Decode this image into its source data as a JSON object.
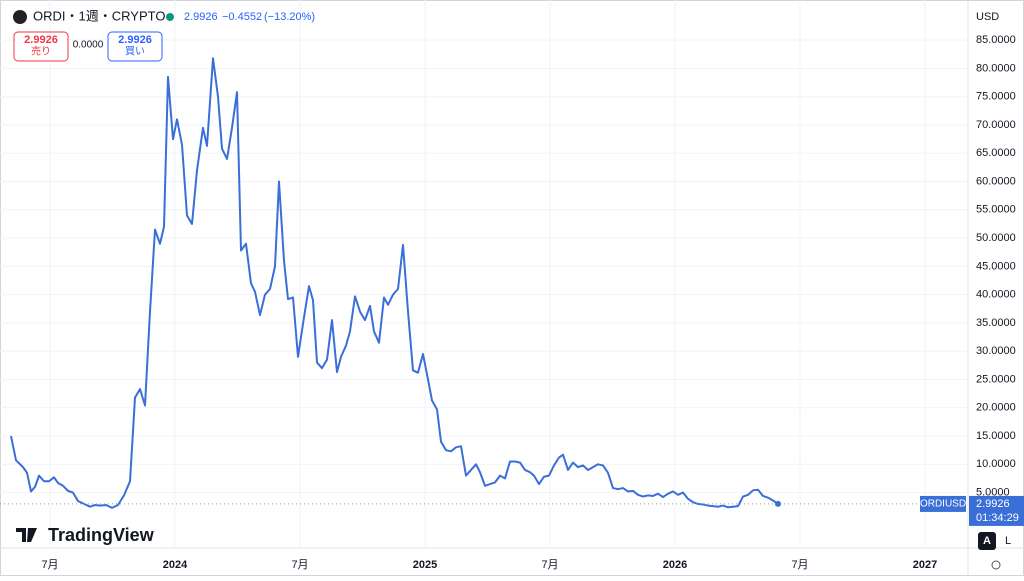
{
  "ui": {
    "symbol": "ORDI・1週・CRYPTO",
    "price": "2.9926",
    "change": "−0.4552",
    "change_pct": "(−13.20%)",
    "sell_price": "2.9926",
    "sell_label": "売り",
    "spread": "0.0000",
    "buy_price": "2.9926",
    "buy_label": "買い",
    "currency": "USD",
    "last_price": "2.9926",
    "countdown": "01:34:29",
    "brand": "TradingView",
    "auto": "A",
    "log": "L"
  },
  "chart_data": {
    "type": "line",
    "xlim": [
      2023.3,
      2027.172
    ],
    "xticks": [
      {
        "value": 2023.5,
        "label": "7月"
      },
      2024,
      {
        "value": 2024.5,
        "label": "7月"
      },
      2025,
      {
        "value": 2025.5,
        "label": "7月"
      },
      2026,
      {
        "value": 2026.5,
        "label": "7月"
      },
      2027
    ],
    "ylim": [
      -4.8,
      92.1
    ],
    "yticks": [
      {
        "value": 5,
        "label": "5.0000"
      },
      {
        "value": 10,
        "label": "10.0000"
      },
      {
        "value": 15,
        "label": "15.0000"
      },
      {
        "value": 20,
        "label": "20.0000"
      },
      {
        "value": 25,
        "label": "25.0000"
      },
      {
        "value": 30,
        "label": "30.0000"
      },
      {
        "value": 35,
        "label": "35.0000"
      },
      {
        "value": 40,
        "label": "40.0000"
      },
      {
        "value": 45,
        "label": "45.0000"
      },
      {
        "value": 50,
        "label": "50.0000"
      },
      {
        "value": 55,
        "label": "55.0000"
      },
      {
        "value": 60,
        "label": "60.0000"
      },
      {
        "value": 65,
        "label": "65.0000"
      },
      {
        "value": 70,
        "label": "70.0000"
      },
      {
        "value": 75,
        "label": "75.0000"
      },
      {
        "value": 80,
        "label": "80.0000"
      },
      {
        "value": 85,
        "label": "85.0000"
      }
    ],
    "grid": true,
    "series": [
      {
        "name": "ORDIUSD",
        "color": "#3a6fd8",
        "x": [
          2023.344,
          2023.364,
          2023.392,
          2023.408,
          2023.424,
          2023.44,
          2023.456,
          2023.476,
          2023.496,
          2023.516,
          2023.532,
          2023.552,
          2023.572,
          2023.592,
          2023.612,
          2023.636,
          2023.66,
          2023.68,
          2023.7,
          2023.724,
          2023.748,
          2023.772,
          2023.796,
          2023.82,
          2023.84,
          2023.86,
          2023.88,
          2023.9,
          2023.92,
          2023.94,
          2023.956,
          2023.972,
          2023.992,
          2024.008,
          2024.028,
          2024.048,
          2024.068,
          2024.088,
          2024.112,
          2024.128,
          2024.152,
          2024.172,
          2024.188,
          2024.208,
          2024.228,
          2024.248,
          2024.264,
          2024.284,
          2024.304,
          2024.32,
          2024.34,
          2024.36,
          2024.38,
          2024.4,
          2024.416,
          2024.436,
          2024.452,
          2024.472,
          2024.492,
          2024.516,
          2024.536,
          2024.552,
          2024.568,
          2024.588,
          2024.608,
          2024.628,
          2024.648,
          2024.664,
          2024.684,
          2024.7,
          2024.72,
          2024.74,
          2024.76,
          2024.78,
          2024.796,
          2024.816,
          2024.836,
          2024.852,
          2024.872,
          2024.892,
          2024.912,
          2024.932,
          2024.952,
          2024.972,
          2024.992,
          2025.012,
          2025.028,
          2025.048,
          2025.064,
          2025.084,
          2025.104,
          2025.124,
          2025.144,
          2025.164,
          2025.184,
          2025.204,
          2025.22,
          2025.24,
          2025.26,
          2025.28,
          2025.3,
          2025.32,
          2025.34,
          2025.36,
          2025.38,
          2025.4,
          2025.42,
          2025.436,
          2025.456,
          2025.476,
          2025.496,
          2025.516,
          2025.536,
          2025.552,
          2025.572,
          2025.592,
          2025.612,
          2025.632,
          2025.652,
          2025.672,
          2025.692,
          2025.712,
          2025.732,
          2025.752,
          2025.772,
          2025.792,
          2025.812,
          2025.832,
          2025.852,
          2025.872,
          2025.892,
          2025.912,
          2025.932,
          2025.952,
          2025.972,
          2025.992,
          2026.012,
          2026.032,
          2026.052,
          2026.072,
          2026.092,
          2026.112,
          2026.132,
          2026.152,
          2026.172,
          2026.192,
          2026.212,
          2026.232,
          2026.252,
          2026.272,
          2026.292,
          2026.312,
          2026.332,
          2026.352,
          2026.372,
          2026.392,
          2026.412
        ],
        "values": [
          15,
          10.7,
          9.5,
          8.5,
          5.2,
          6,
          8,
          7,
          7,
          7.7,
          6.7,
          6.2,
          5.3,
          5,
          3.5,
          3,
          2.5,
          2.8,
          2.7,
          2.8,
          2.3,
          2.8,
          4.5,
          7,
          21.8,
          23.3,
          20.4,
          37,
          51.5,
          49,
          52,
          78.5,
          67.5,
          71,
          66.5,
          54,
          52.5,
          62,
          69.5,
          66.3,
          81.8,
          75,
          65.8,
          64,
          69.5,
          75.8,
          47.8,
          49,
          42,
          40.5,
          36.4,
          40,
          41,
          45,
          60,
          46,
          39.2,
          39.5,
          29,
          36,
          41.5,
          39,
          28,
          27,
          28.5,
          35.5,
          26.3,
          29,
          31,
          33.5,
          39.7,
          37,
          35.5,
          38,
          33.5,
          31.5,
          39.5,
          38.2,
          40,
          41,
          48.8,
          37,
          26.6,
          26.2,
          29.5,
          25,
          21.3,
          19.7,
          14,
          12.5,
          12.3,
          13,
          13.2,
          8,
          9,
          10,
          8.6,
          6.2,
          6.5,
          6.8,
          8,
          7.5,
          10.5,
          10.5,
          10.3,
          9,
          8.6,
          8,
          6.5,
          7.8,
          8,
          9.8,
          11.2,
          11.7,
          9,
          10.3,
          9.5,
          9.8,
          9,
          9.5,
          10,
          9.8,
          8.5,
          5.8,
          5.6,
          5.8,
          5.2,
          5.3,
          4.6,
          4.3,
          4.5,
          4.4,
          4.8,
          4.2,
          4.8,
          5.2,
          4.6,
          5,
          3.9,
          3.3,
          3,
          2.9,
          2.7,
          2.6,
          2.5,
          2.7,
          2.4,
          2.5,
          2.6,
          4.3,
          4.6,
          5.4,
          5.5,
          4.4,
          4.1,
          3.6,
          2.9926
        ]
      }
    ]
  }
}
